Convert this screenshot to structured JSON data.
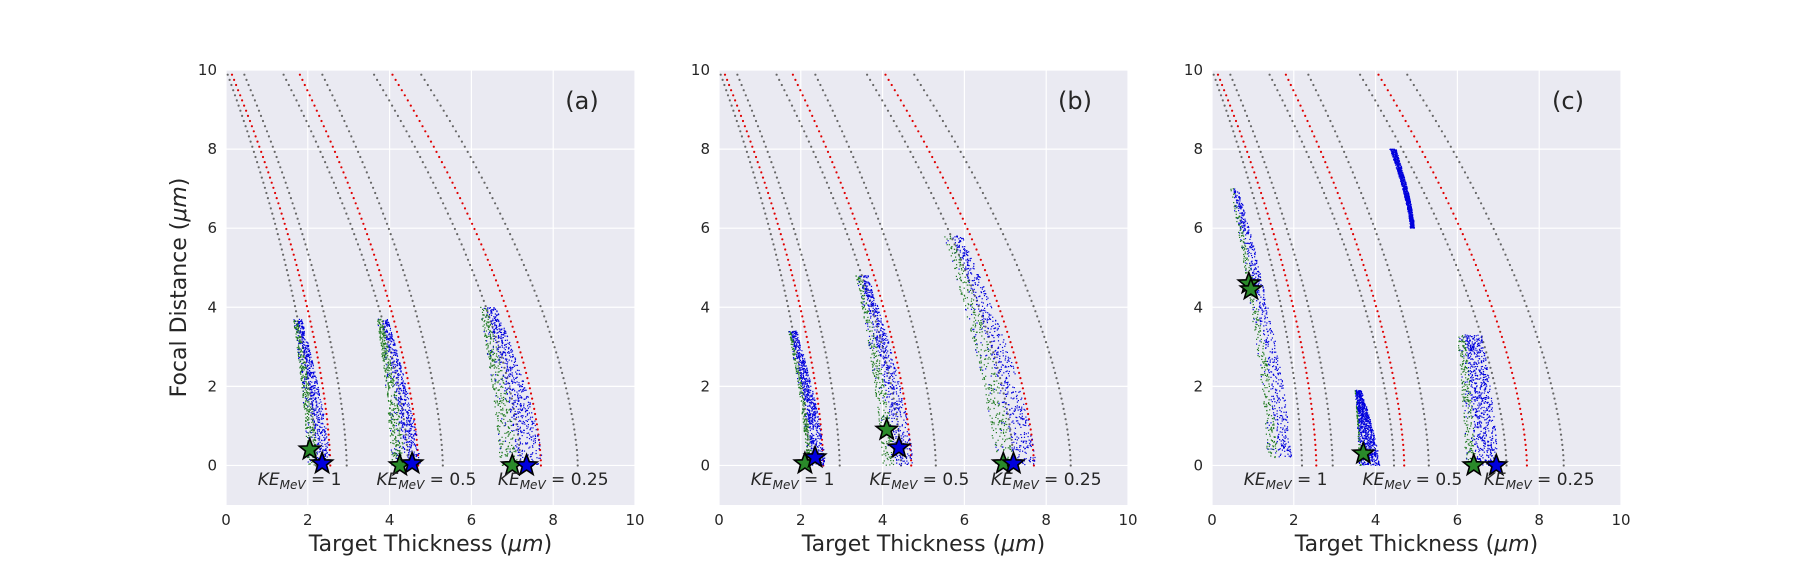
{
  "chart_data": [
    {
      "type": "scatter",
      "panel_label": "(a)",
      "xlabel": "Target Thickness (μm)",
      "ylabel": "Focal Distance (μm)",
      "xlim": [
        0,
        10
      ],
      "ylim": [
        -1,
        10
      ],
      "xticks": [
        0,
        2,
        4,
        6,
        8,
        10
      ],
      "yticks": [
        0,
        2,
        4,
        6,
        8,
        10
      ],
      "grid": true,
      "background": "#eaeaf2",
      "colors": {
        "grey_curve": "#666666",
        "red_curve": "#e00000",
        "blue_points": "#0000dd",
        "green_points": "#1f7a1f"
      },
      "ke_labels": [
        {
          "value": "1",
          "x": 1.8
        },
        {
          "value": "0.5",
          "x": 4.9
        },
        {
          "value": "0.25",
          "x": 8.0
        }
      ],
      "grey_curves": [
        {
          "x10": 0.0,
          "x0": 2.2
        },
        {
          "x10": 0.4,
          "x0": 2.95
        },
        {
          "x10": 1.35,
          "x0": 4.45
        },
        {
          "x10": 2.3,
          "x0": 5.3
        },
        {
          "x10": 3.55,
          "x0": 7.2
        },
        {
          "x10": 4.7,
          "x0": 8.6
        }
      ],
      "red_curves": [
        {
          "x10": 0.1,
          "x0": 2.55
        },
        {
          "x10": 1.75,
          "x0": 4.7
        },
        {
          "x10": 4.0,
          "x0": 7.7
        }
      ],
      "clusters": [
        {
          "top_y": 3.7,
          "top_x_left": 1.65,
          "top_x_right": 1.85,
          "bottom_x_left": 2.0,
          "bottom_x_right": 2.55,
          "green_fraction": 0.45
        },
        {
          "top_y": 3.7,
          "top_x_left": 3.7,
          "top_x_right": 3.95,
          "bottom_x_left": 4.05,
          "bottom_x_right": 4.75,
          "green_fraction": 0.45
        },
        {
          "top_y": 4.0,
          "top_x_left": 6.2,
          "top_x_right": 6.6,
          "bottom_x_left": 6.7,
          "bottom_x_right": 7.75,
          "green_fraction": 0.4
        }
      ],
      "stars": [
        {
          "color": "green",
          "x": 2.05,
          "y": 0.4
        },
        {
          "color": "blue",
          "x": 2.35,
          "y": 0.05
        },
        {
          "color": "green",
          "x": 4.25,
          "y": 0.0
        },
        {
          "color": "blue",
          "x": 4.55,
          "y": 0.05
        },
        {
          "color": "green",
          "x": 7.0,
          "y": 0.0
        },
        {
          "color": "blue",
          "x": 7.35,
          "y": 0.0
        }
      ]
    },
    {
      "type": "scatter",
      "panel_label": "(b)",
      "xlabel": "Target Thickness (μm)",
      "ylabel": "",
      "xlim": [
        0,
        10
      ],
      "ylim": [
        -1,
        10
      ],
      "xticks": [
        0,
        2,
        4,
        6,
        8,
        10
      ],
      "yticks": [
        0,
        2,
        4,
        6,
        8,
        10
      ],
      "grid": true,
      "background": "#eaeaf2",
      "colors": {
        "grey_curve": "#666666",
        "red_curve": "#e00000",
        "blue_points": "#0000dd",
        "green_points": "#1f7a1f"
      },
      "ke_labels": [
        {
          "value": "1",
          "x": 1.8
        },
        {
          "value": "0.5",
          "x": 4.9
        },
        {
          "value": "0.25",
          "x": 8.0
        }
      ],
      "grey_curves": [
        {
          "x10": 0.0,
          "x0": 2.2
        },
        {
          "x10": 0.4,
          "x0": 2.95
        },
        {
          "x10": 1.35,
          "x0": 4.45
        },
        {
          "x10": 2.3,
          "x0": 5.3
        },
        {
          "x10": 3.55,
          "x0": 7.2
        },
        {
          "x10": 4.7,
          "x0": 8.6
        }
      ],
      "red_curves": [
        {
          "x10": 0.1,
          "x0": 2.55
        },
        {
          "x10": 1.75,
          "x0": 4.7
        },
        {
          "x10": 4.0,
          "x0": 7.7
        }
      ],
      "clusters": [
        {
          "top_y": 3.4,
          "top_x_left": 1.7,
          "top_x_right": 1.9,
          "bottom_x_left": 2.15,
          "bottom_x_right": 2.6,
          "green_fraction": 0.3
        },
        {
          "top_y": 4.8,
          "top_x_left": 3.35,
          "top_x_right": 3.65,
          "bottom_x_left": 4.0,
          "bottom_x_right": 4.75,
          "green_fraction": 0.4
        },
        {
          "top_y": 5.8,
          "top_x_left": 5.5,
          "top_x_right": 5.95,
          "bottom_x_left": 6.75,
          "bottom_x_right": 7.75,
          "green_fraction": 0.45
        }
      ],
      "stars": [
        {
          "color": "green",
          "x": 2.1,
          "y": 0.05
        },
        {
          "color": "blue",
          "x": 2.35,
          "y": 0.2
        },
        {
          "color": "green",
          "x": 4.1,
          "y": 0.9
        },
        {
          "color": "blue",
          "x": 4.4,
          "y": 0.45
        },
        {
          "color": "green",
          "x": 6.95,
          "y": 0.05
        },
        {
          "color": "blue",
          "x": 7.2,
          "y": 0.05
        }
      ]
    },
    {
      "type": "scatter",
      "panel_label": "(c)",
      "xlabel": "Target Thickness (μm)",
      "ylabel": "",
      "xlim": [
        0,
        10
      ],
      "ylim": [
        -1,
        10
      ],
      "xticks": [
        0,
        2,
        4,
        6,
        8,
        10
      ],
      "yticks": [
        0,
        2,
        4,
        6,
        8,
        10
      ],
      "grid": true,
      "background": "#eaeaf2",
      "colors": {
        "grey_curve": "#666666",
        "red_curve": "#e00000",
        "blue_points": "#0000dd",
        "green_points": "#1f7a1f"
      },
      "ke_labels": [
        {
          "value": "1",
          "x": 1.8
        },
        {
          "value": "0.5",
          "x": 4.9
        },
        {
          "value": "0.25",
          "x": 8.0
        }
      ],
      "grey_curves": [
        {
          "x10": 0.0,
          "x0": 2.2
        },
        {
          "x10": 0.4,
          "x0": 2.95
        },
        {
          "x10": 1.35,
          "x0": 4.45
        },
        {
          "x10": 2.3,
          "x0": 5.3
        },
        {
          "x10": 3.55,
          "x0": 7.2
        },
        {
          "x10": 4.7,
          "x0": 8.6
        }
      ],
      "red_curves": [
        {
          "x10": 0.1,
          "x0": 2.55
        },
        {
          "x10": 1.75,
          "x0": 4.7
        },
        {
          "x10": 4.0,
          "x0": 7.7
        }
      ],
      "clusters": [
        {
          "top_y": 7.0,
          "bottom_y": 0.2,
          "top_x_left": 0.45,
          "top_x_right": 0.65,
          "bottom_x_left": 1.35,
          "bottom_x_right": 1.95,
          "green_fraction": 0.4
        },
        {
          "top_y": 1.9,
          "top_x_left": 3.5,
          "top_x_right": 3.65,
          "bottom_x_left": 3.6,
          "bottom_x_right": 4.1,
          "green_fraction": 0.1
        },
        {
          "top_y": 3.3,
          "top_x_left": 6.0,
          "top_x_right": 6.6,
          "bottom_x_left": 6.2,
          "bottom_x_right": 7.0,
          "green_fraction": 0.3
        },
        {
          "top_y": 8.0,
          "bottom_y": 6.0,
          "top_x_left": 4.35,
          "top_x_right": 4.5,
          "bottom_x_left": 4.85,
          "bottom_x_right": 4.95,
          "green_fraction": 0.0
        }
      ],
      "stars": [
        {
          "color": "green",
          "x": 0.9,
          "y": 4.6
        },
        {
          "color": "green",
          "x": 0.95,
          "y": 4.45
        },
        {
          "color": "green",
          "x": 3.7,
          "y": 0.3
        },
        {
          "color": "green",
          "x": 6.4,
          "y": 0.0
        },
        {
          "color": "blue",
          "x": 6.95,
          "y": 0.0
        }
      ]
    }
  ]
}
